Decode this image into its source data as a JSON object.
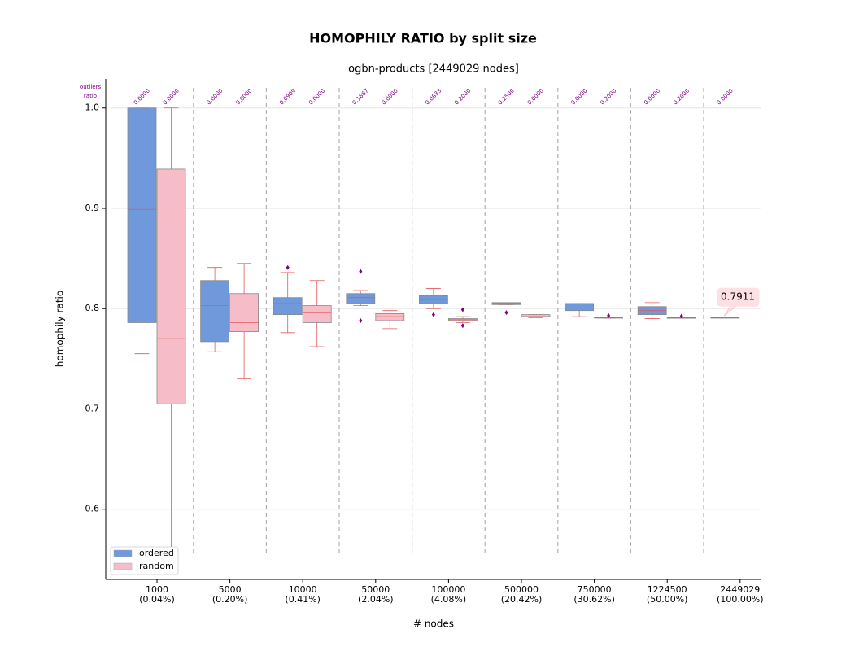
{
  "chart_data": {
    "type": "box",
    "title": "HOMOPHILY RATIO by split size",
    "subtitle": "ogbn-products [2449029 nodes]",
    "x_label": "# nodes",
    "y_label": "homophily ratio",
    "categories": [
      "1000",
      "5000",
      "10000",
      "50000",
      "100000",
      "500000",
      "750000",
      "1224500",
      "2449029"
    ],
    "category_sublabels": [
      "(0.04%)",
      "(0.20%)",
      "(0.41%)",
      "(2.04%)",
      "(4.08%)",
      "(20.42%)",
      "(30.62%)",
      "(50.00%)",
      "(100.00%)"
    ],
    "ratio_header": [
      "outliers",
      "ratio"
    ],
    "ylim": [
      0.53,
      1.029
    ],
    "yticks": [
      0.6,
      0.7,
      0.8,
      0.9,
      {
        "value": 1.0,
        "label": "1.0"
      }
    ],
    "grid": true,
    "legend": "lower left",
    "series": [
      {
        "name": "ordered",
        "color": "#7099dc",
        "outlier_ratios": [
          "0.0000",
          "0.0000",
          "0.0909",
          "0.1667",
          "0.0833",
          "0.2500",
          "0.0000",
          "0.0000",
          "0.0000"
        ],
        "boxes": [
          {
            "whislo": 0.755,
            "q1": 0.786,
            "med": 0.899,
            "q3": 1.0,
            "whishi": 1.0,
            "fliers": []
          },
          {
            "whislo": 0.757,
            "q1": 0.767,
            "med": 0.803,
            "q3": 0.828,
            "whishi": 0.841,
            "fliers": []
          },
          {
            "whislo": 0.776,
            "q1": 0.794,
            "med": 0.805,
            "q3": 0.811,
            "whishi": 0.836,
            "fliers": [
              0.841
            ]
          },
          {
            "whislo": 0.803,
            "q1": 0.805,
            "med": 0.811,
            "q3": 0.815,
            "whishi": 0.818,
            "fliers": [
              0.837,
              0.788
            ]
          },
          {
            "whislo": 0.8,
            "q1": 0.805,
            "med": 0.809,
            "q3": 0.813,
            "whishi": 0.82,
            "fliers": [
              0.794
            ]
          },
          {
            "whislo": 0.804,
            "q1": 0.804,
            "med": 0.805,
            "q3": 0.806,
            "whishi": 0.806,
            "fliers": [
              0.796
            ]
          },
          {
            "whislo": 0.792,
            "q1": 0.798,
            "med": 0.805,
            "q3": 0.805,
            "whishi": 0.805,
            "fliers": []
          },
          {
            "whislo": 0.79,
            "q1": 0.794,
            "med": 0.798,
            "q3": 0.802,
            "whishi": 0.806,
            "fliers": []
          },
          {
            "whislo": 0.7911,
            "q1": 0.7911,
            "med": 0.7911,
            "q3": 0.7911,
            "whishi": 0.7911,
            "fliers": []
          }
        ]
      },
      {
        "name": "random",
        "color": "#f6bcc8",
        "outlier_ratios": [
          "0.0000",
          "0.0000",
          "0.0000",
          "0.0000",
          "0.2000",
          "0.0000",
          "0.2000",
          "0.2000",
          null
        ],
        "boxes": [
          {
            "whislo": 0.556,
            "q1": 0.705,
            "med": 0.77,
            "q3": 0.939,
            "whishi": 1.0,
            "fliers": []
          },
          {
            "whislo": 0.73,
            "q1": 0.777,
            "med": 0.786,
            "q3": 0.815,
            "whishi": 0.845,
            "fliers": []
          },
          {
            "whislo": 0.762,
            "q1": 0.786,
            "med": 0.796,
            "q3": 0.803,
            "whishi": 0.828,
            "fliers": []
          },
          {
            "whislo": 0.78,
            "q1": 0.788,
            "med": 0.792,
            "q3": 0.795,
            "whishi": 0.798,
            "fliers": []
          },
          {
            "whislo": 0.786,
            "q1": 0.788,
            "med": 0.789,
            "q3": 0.79,
            "whishi": 0.792,
            "fliers": [
              0.799,
              0.783
            ]
          },
          {
            "whislo": 0.791,
            "q1": 0.792,
            "med": 0.792,
            "q3": 0.794,
            "whishi": 0.794,
            "fliers": []
          },
          {
            "whislo": 0.7905,
            "q1": 0.7905,
            "med": 0.791,
            "q3": 0.7915,
            "whishi": 0.7915,
            "fliers": [
              0.793
            ]
          },
          {
            "whislo": 0.791,
            "q1": 0.791,
            "med": 0.791,
            "q3": 0.791,
            "whishi": 0.791,
            "fliers": [
              0.7925
            ]
          },
          null
        ]
      }
    ],
    "annotation": {
      "text": "0.7911",
      "value": 0.7911
    }
  }
}
